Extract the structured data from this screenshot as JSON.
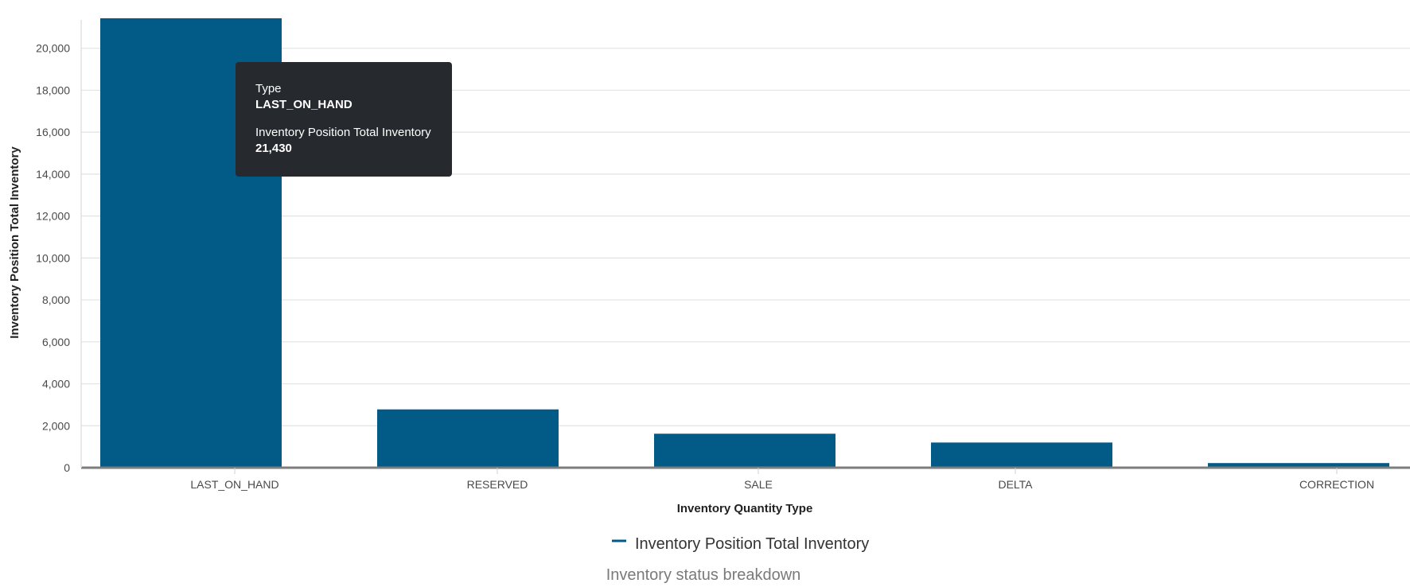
{
  "chart_data": {
    "type": "bar",
    "categories": [
      "LAST_ON_HAND",
      "RESERVED",
      "SALE",
      "DELTA",
      "CORRECTION"
    ],
    "series": [
      {
        "name": "Inventory Position Total Inventory",
        "values": [
          21430,
          2780,
          1620,
          1200,
          220
        ],
        "color": "#025a86"
      }
    ],
    "xlabel": "Inventory Quantity Type",
    "ylabel": "Inventory Position Total Inventory",
    "ylim": [
      0,
      21430
    ],
    "yticks": [
      0,
      2000,
      4000,
      6000,
      8000,
      10000,
      12000,
      14000,
      16000,
      18000,
      20000
    ],
    "ytick_labels": [
      "0",
      "2,000",
      "4,000",
      "6,000",
      "8,000",
      "10,000",
      "12,000",
      "14,000",
      "16,000",
      "18,000",
      "20,000"
    ],
    "grid": true,
    "legend": "bottom-center",
    "caption": "Inventory status breakdown"
  },
  "tooltip": {
    "type_label": "Type",
    "type_value": "LAST_ON_HAND",
    "metric_label": "Inventory Position Total Inventory",
    "metric_value": "21,430"
  },
  "colors": {
    "bar": "#025a86",
    "grid": "#e2e2e2",
    "axis": "#7d7d7d",
    "tooltip_bg": "#262a2f"
  }
}
